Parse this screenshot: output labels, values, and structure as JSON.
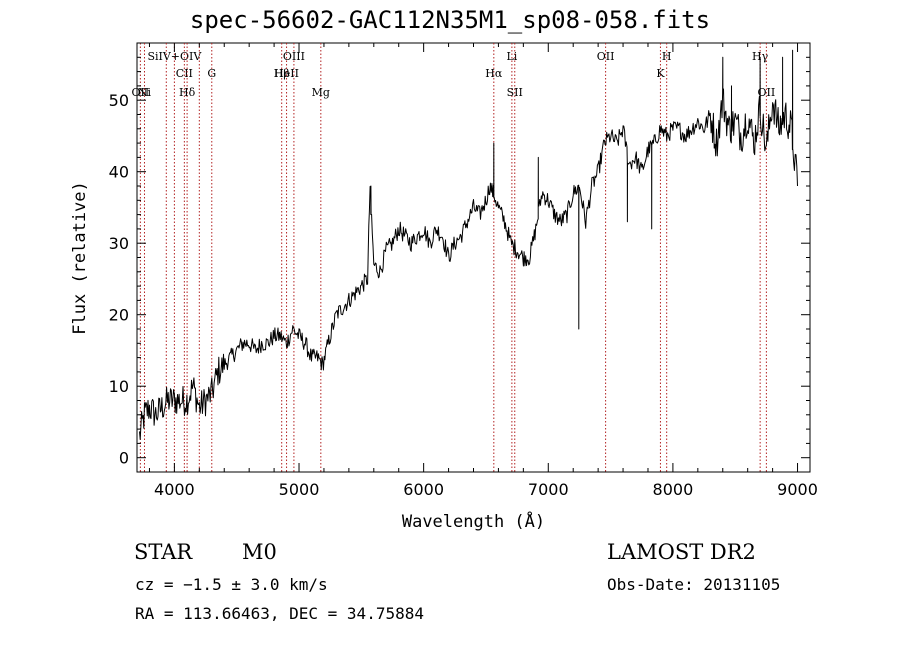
{
  "chart_data": {
    "type": "line",
    "title": "spec-56602-GAC112N35M1_sp08-058.fits",
    "xlabel": "Wavelength (Å)",
    "ylabel": "Flux (relative)",
    "xlim": [
      3700,
      9100
    ],
    "ylim": [
      -2,
      58
    ],
    "xticks": [
      4000,
      5000,
      6000,
      7000,
      8000,
      9000
    ],
    "yticks": [
      0,
      10,
      20,
      30,
      40,
      50
    ],
    "grid": false,
    "series": [
      {
        "values_x": [
          3720,
          3760,
          3800,
          3850,
          3900,
          3950,
          4000,
          4050,
          4100,
          4150,
          4200,
          4250,
          4300,
          4350,
          4400,
          4450,
          4500,
          4550,
          4600,
          4650,
          4700,
          4750,
          4800,
          4850,
          4900,
          4950,
          5000,
          5050,
          5100,
          5150,
          5190,
          5250,
          5300,
          5350,
          5400,
          5450,
          5500,
          5550,
          5570,
          5600,
          5650,
          5700,
          5750,
          5800,
          5850,
          5900,
          5950,
          6000,
          6050,
          6100,
          6150,
          6200,
          6250,
          6300,
          6350,
          6400,
          6450,
          6500,
          6530,
          6560,
          6600,
          6650,
          6700,
          6750,
          6800,
          6850,
          6900,
          6950,
          7000,
          7050,
          7100,
          7150,
          7200,
          7250,
          7300,
          7350,
          7400,
          7450,
          7500,
          7550,
          7600,
          7650,
          7700,
          7750,
          7800,
          7850,
          7900,
          7950,
          8000,
          8050,
          8100,
          8150,
          8200,
          8250,
          8300,
          8350,
          8400,
          8450,
          8500,
          8550,
          8600,
          8650,
          8700,
          8750,
          8800,
          8850,
          8900,
          8950,
          9000
        ],
        "values_y": [
          3,
          6,
          7,
          6,
          7,
          8,
          8,
          8,
          8,
          10,
          7,
          8,
          9,
          12,
          13,
          14,
          15,
          16,
          16,
          15,
          16,
          16,
          17,
          17,
          16,
          18,
          17,
          16,
          14,
          14,
          13,
          17,
          20,
          21,
          22,
          23,
          24,
          25,
          38,
          27,
          26,
          29,
          30,
          32,
          31,
          30,
          31,
          32,
          30,
          32,
          31,
          28,
          30,
          31,
          33,
          35,
          34,
          36,
          38,
          37,
          35,
          33,
          30,
          29,
          28,
          28,
          32,
          37,
          36,
          34,
          33,
          34,
          37,
          38,
          33,
          38,
          40,
          44,
          45,
          44,
          46,
          41,
          42,
          40,
          43,
          44,
          46,
          45,
          46,
          46,
          45,
          46,
          47,
          46,
          48,
          44,
          50,
          46,
          47,
          45,
          48,
          44,
          49,
          43,
          50,
          46,
          48,
          46,
          38
        ],
        "spikes": [
          {
            "x": 5577,
            "y": 38
          },
          {
            "x": 6563,
            "y": 44
          },
          {
            "x": 6920,
            "y": 42
          },
          {
            "x": 7245,
            "y": 18
          },
          {
            "x": 7635,
            "y": 33
          },
          {
            "x": 7830,
            "y": 32
          },
          {
            "x": 8400,
            "y": 56
          },
          {
            "x": 8470,
            "y": 52
          },
          {
            "x": 8700,
            "y": 56
          },
          {
            "x": 8880,
            "y": 56
          },
          {
            "x": 8960,
            "y": 57
          }
        ]
      }
    ],
    "lines": [
      {
        "x": 3727,
        "label": "OII",
        "row": 3
      },
      {
        "x": 3760,
        "label": "Ni",
        "row": 3
      },
      {
        "x": 3935,
        "label": "",
        "row": 0
      },
      {
        "x": 4000,
        "label": "SiIV+OIV",
        "row": 1
      },
      {
        "x": 4080,
        "label": "CII",
        "row": 2
      },
      {
        "x": 4102,
        "label": "Hδ",
        "row": 3
      },
      {
        "x": 4200,
        "label": "",
        "row": 0
      },
      {
        "x": 4300,
        "label": "G",
        "row": 2
      },
      {
        "x": 4861,
        "label": "Hβ",
        "row": 2
      },
      {
        "x": 4959,
        "label": "OIII",
        "row": 1
      },
      {
        "x": 4900,
        "label": "HeII",
        "row": 2
      },
      {
        "x": 5175,
        "label": "Mg",
        "row": 3
      },
      {
        "x": 6563,
        "label": "Hα",
        "row": 2
      },
      {
        "x": 6708,
        "label": "Li",
        "row": 1
      },
      {
        "x": 6731,
        "label": "SII",
        "row": 3
      },
      {
        "x": 7460,
        "label": "OII",
        "row": 1
      },
      {
        "x": 7900,
        "label": "K",
        "row": 2
      },
      {
        "x": 7950,
        "label": "H",
        "row": 1
      },
      {
        "x": 8700,
        "label": "Hγ",
        "row": 1
      },
      {
        "x": 8750,
        "label": "OII",
        "row": 3
      }
    ]
  },
  "info": {
    "object_type": "STAR",
    "subclass": "M0",
    "survey": "LAMOST DR2",
    "cz": "cz = −1.5 ± 3.0 km/s",
    "obs_date": "Obs-Date: 20131105",
    "coords": "RA = 113.66463, DEC =  34.75884"
  }
}
